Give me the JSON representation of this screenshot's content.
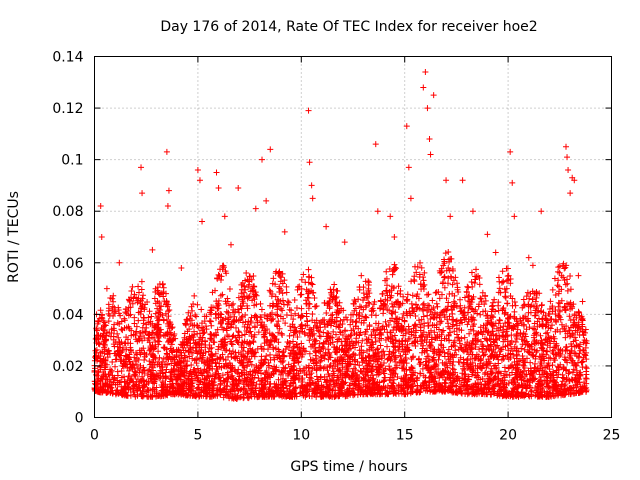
{
  "chart_data": {
    "type": "scatter",
    "title": "Day 176 of 2014, Rate Of TEC Index for receiver hoe2",
    "xlabel": "GPS time / hours",
    "ylabel": "ROTI / TECUs",
    "xlim": [
      0,
      25
    ],
    "ylim": [
      0,
      0.14
    ],
    "xticks": [
      0,
      5,
      10,
      15,
      20,
      25
    ],
    "yticks": [
      0,
      0.02,
      0.04,
      0.06,
      0.08,
      0.1,
      0.12,
      0.14
    ],
    "xtick_labels": [
      "0",
      "5",
      "10",
      "15",
      "20",
      "25"
    ],
    "ytick_labels": [
      "0",
      "0.02",
      "0.04",
      "0.06",
      "0.08",
      "0.1",
      "0.12",
      "0.14"
    ],
    "grid": true,
    "marker": "plus",
    "color": "#ff0000",
    "series": [
      {
        "name": "hoe2",
        "x": [
          0.1,
          0.3,
          0.35,
          0.6,
          1.2,
          2.25,
          2.3,
          2.8,
          3.5,
          3.6,
          3.55,
          4.2,
          5.0,
          5.1,
          5.2,
          5.9,
          6.0,
          6.3,
          6.6,
          6.95,
          7.4,
          7.8,
          8.1,
          8.3,
          8.5,
          9.2,
          10.35,
          10.4,
          10.5,
          10.55,
          11.2,
          12.1,
          12.9,
          13.6,
          13.7,
          14.3,
          14.5,
          15.1,
          15.2,
          15.3,
          15.9,
          16.0,
          16.1,
          16.2,
          16.25,
          16.4,
          17.0,
          17.2,
          17.8,
          18.3,
          19.0,
          19.4,
          20.1,
          20.2,
          20.3,
          21.0,
          21.2,
          21.6,
          22.5,
          22.8,
          22.85,
          22.9,
          23.0,
          23.1,
          23.2,
          23.4,
          23.6,
          23.7,
          23.8
        ],
        "y": [
          0.04,
          0.082,
          0.07,
          0.05,
          0.06,
          0.097,
          0.087,
          0.065,
          0.103,
          0.088,
          0.082,
          0.058,
          0.096,
          0.092,
          0.076,
          0.095,
          0.089,
          0.078,
          0.067,
          0.089,
          0.035,
          0.081,
          0.1,
          0.084,
          0.104,
          0.072,
          0.119,
          0.099,
          0.09,
          0.085,
          0.074,
          0.068,
          0.055,
          0.106,
          0.08,
          0.078,
          0.07,
          0.113,
          0.097,
          0.085,
          0.128,
          0.134,
          0.12,
          0.108,
          0.102,
          0.125,
          0.092,
          0.078,
          0.092,
          0.08,
          0.071,
          0.064,
          0.103,
          0.091,
          0.078,
          0.062,
          0.059,
          0.08,
          0.041,
          0.105,
          0.101,
          0.096,
          0.087,
          0.093,
          0.092,
          0.055,
          0.045,
          0.03,
          0.015
        ]
      }
    ],
    "envelope": {
      "hours": [
        0,
        1,
        2,
        3,
        4,
        5,
        6,
        7,
        8,
        9,
        10,
        11,
        12,
        13,
        14,
        15,
        16,
        17,
        18,
        19,
        20,
        21,
        22,
        23,
        23.8
      ],
      "upper": [
        0.045,
        0.05,
        0.055,
        0.06,
        0.035,
        0.05,
        0.06,
        0.06,
        0.055,
        0.058,
        0.06,
        0.055,
        0.05,
        0.055,
        0.06,
        0.062,
        0.06,
        0.065,
        0.06,
        0.055,
        0.06,
        0.05,
        0.055,
        0.065,
        0.035
      ],
      "lower": [
        0.01,
        0.009,
        0.008,
        0.008,
        0.009,
        0.008,
        0.008,
        0.007,
        0.008,
        0.008,
        0.008,
        0.008,
        0.008,
        0.009,
        0.009,
        0.009,
        0.01,
        0.01,
        0.009,
        0.009,
        0.008,
        0.008,
        0.008,
        0.009,
        0.01
      ]
    }
  }
}
